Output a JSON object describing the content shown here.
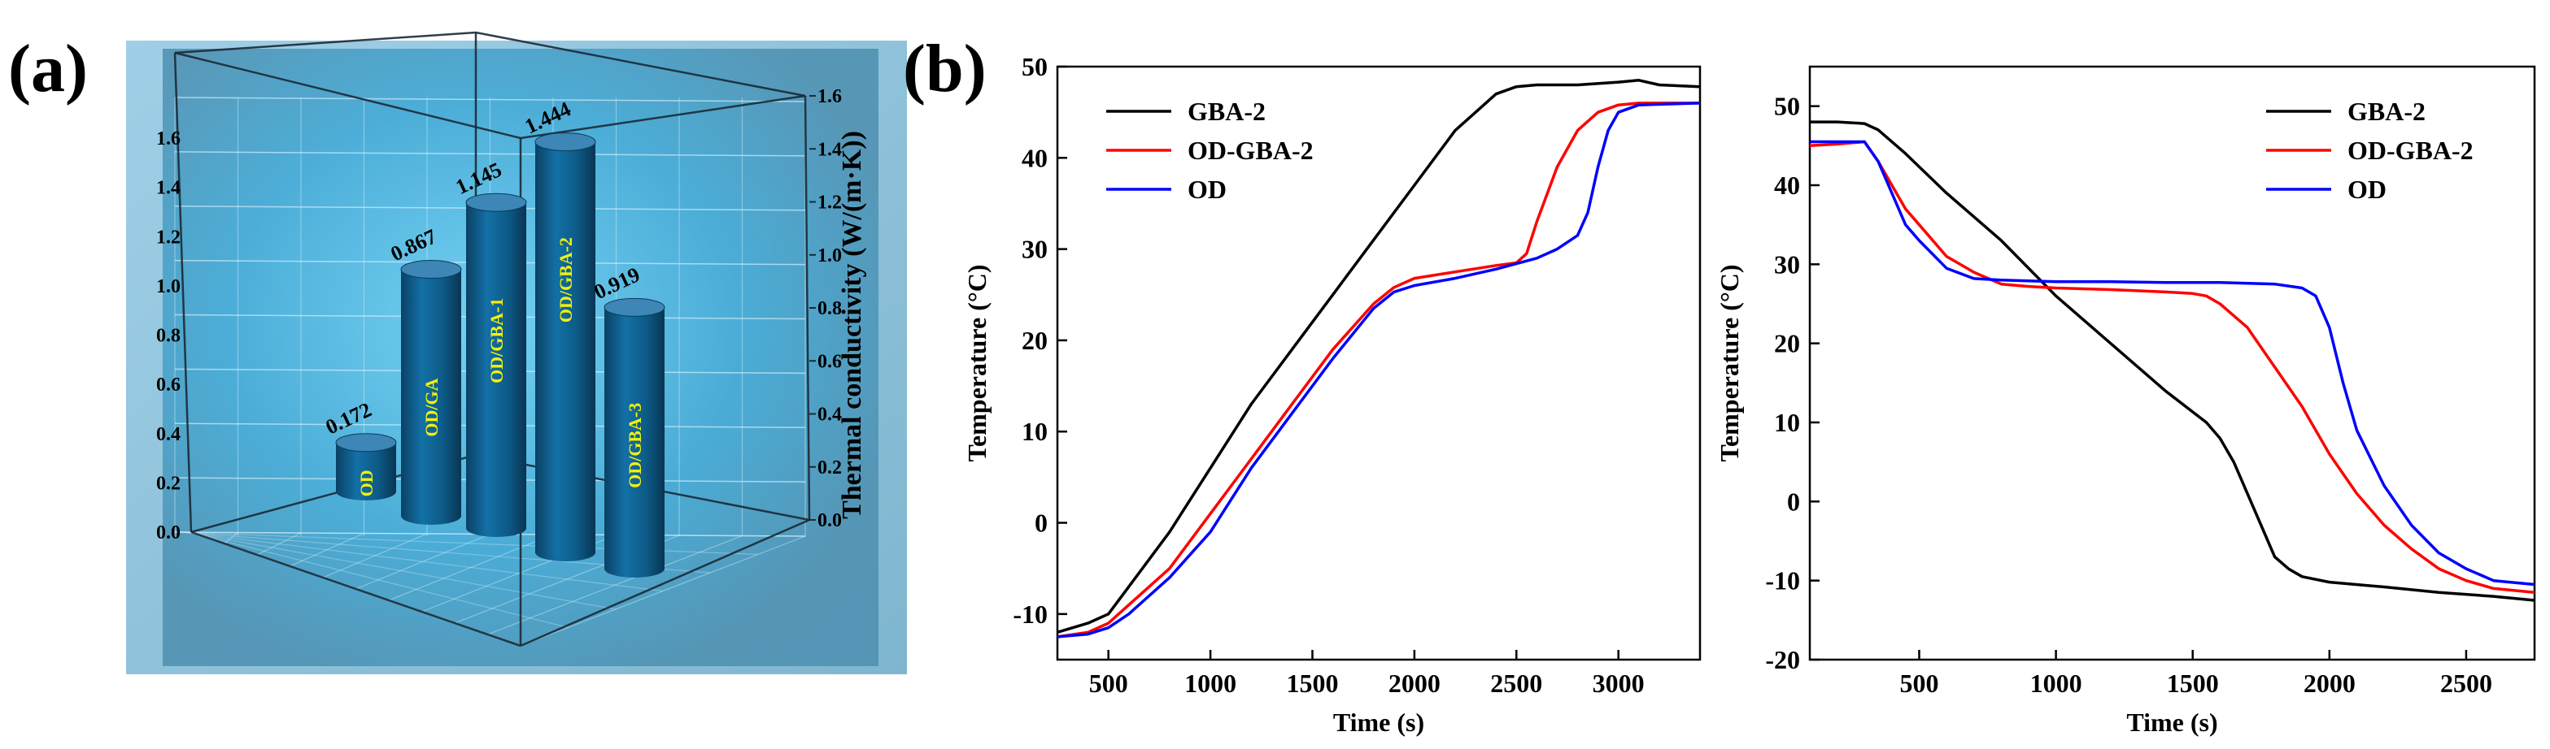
{
  "panels": {
    "a": "(a)",
    "b": "(b)"
  },
  "colors": {
    "bar": "#0d5a86",
    "bar_top": "#3d86b6",
    "box_bg": "#58b7e2",
    "gba2": "#000000",
    "odgba2": "#ff0000",
    "od": "#0000ff"
  },
  "chart_data": [
    {
      "type": "bar",
      "title": "",
      "categories": [
        "OD",
        "OD/GA",
        "OD/GBA-1",
        "OD/GBA-2",
        "OD/GBA-3"
      ],
      "values": [
        0.172,
        0.867,
        1.145,
        1.444,
        0.919
      ],
      "value_labels": [
        "0.172",
        "0.867",
        "1.145",
        "1.444",
        "0.919"
      ],
      "ylabel": "Thermal conductivity (W/(m·K))",
      "ylim": [
        0,
        1.6
      ],
      "yticks": [
        "0.0",
        "0.2",
        "0.4",
        "0.6",
        "0.8",
        "1.0",
        "1.2",
        "1.4",
        "1.6"
      ],
      "grid": true
    },
    {
      "type": "line",
      "xlabel": "Time (s)",
      "ylabel": "Temperature (°C)",
      "xlim": [
        250,
        3400
      ],
      "ylim": [
        -15,
        50
      ],
      "xticks": [
        "500",
        "1000",
        "1500",
        "2000",
        "2500",
        "3000"
      ],
      "yticks": [
        "-10",
        "0",
        "10",
        "20",
        "30",
        "40",
        "50"
      ],
      "legend": "top-left",
      "series": [
        {
          "name": "GBA-2",
          "color_key": "gba2",
          "x": [
            250,
            400,
            500,
            600,
            800,
            1000,
            1200,
            1400,
            1600,
            1800,
            2000,
            2200,
            2300,
            2400,
            2500,
            2600,
            2800,
            3000,
            3100,
            3200,
            3400
          ],
          "y": [
            -12,
            -11,
            -10,
            -7,
            -1,
            6,
            13,
            19,
            25,
            31,
            37,
            43,
            45,
            47,
            47.8,
            48,
            48,
            48.3,
            48.5,
            48,
            47.8
          ]
        },
        {
          "name": "OD-GBA-2",
          "color_key": "odgba2",
          "x": [
            250,
            400,
            500,
            600,
            800,
            1000,
            1200,
            1400,
            1600,
            1800,
            1900,
            2000,
            2200,
            2400,
            2500,
            2550,
            2600,
            2700,
            2800,
            2900,
            3000,
            3100,
            3400
          ],
          "y": [
            -12.5,
            -12,
            -11,
            -9,
            -5,
            1,
            7,
            13,
            19,
            24,
            25.8,
            26.8,
            27.5,
            28.2,
            28.5,
            29.5,
            33,
            39,
            43,
            45,
            45.8,
            46,
            46
          ]
        },
        {
          "name": "OD",
          "color_key": "od",
          "x": [
            250,
            400,
            500,
            600,
            800,
            1000,
            1200,
            1400,
            1600,
            1800,
            1900,
            2000,
            2200,
            2400,
            2600,
            2700,
            2800,
            2850,
            2900,
            2950,
            3000,
            3100,
            3400
          ],
          "y": [
            -12.5,
            -12.2,
            -11.5,
            -10,
            -6,
            -1,
            6,
            12,
            18,
            23.5,
            25.3,
            26,
            26.8,
            27.8,
            29,
            30,
            31.5,
            34,
            39,
            43,
            45,
            45.8,
            46
          ]
        }
      ]
    },
    {
      "type": "line",
      "xlabel": "Time (s)",
      "ylabel": "Temperature (°C)",
      "xlim": [
        100,
        2750
      ],
      "ylim": [
        -20,
        55
      ],
      "xticks": [
        "500",
        "1000",
        "1500",
        "2000",
        "2500"
      ],
      "yticks": [
        "-20",
        "-10",
        "0",
        "10",
        "20",
        "30",
        "40",
        "50"
      ],
      "legend": "top-right",
      "series": [
        {
          "name": "GBA-2",
          "color_key": "gba2",
          "x": [
            100,
            200,
            300,
            350,
            450,
            600,
            800,
            1000,
            1200,
            1400,
            1550,
            1600,
            1650,
            1700,
            1750,
            1800,
            1850,
            1900,
            2000,
            2200,
            2400,
            2600,
            2750
          ],
          "y": [
            48,
            48,
            47.8,
            47,
            44,
            39,
            33,
            26,
            20,
            14,
            10,
            8,
            5,
            1,
            -3,
            -7,
            -8.5,
            -9.5,
            -10.2,
            -10.8,
            -11.5,
            -12,
            -12.5
          ]
        },
        {
          "name": "OD-GBA-2",
          "color_key": "odgba2",
          "x": [
            100,
            200,
            300,
            350,
            400,
            450,
            500,
            600,
            700,
            800,
            900,
            1000,
            1200,
            1400,
            1500,
            1550,
            1600,
            1700,
            1800,
            1900,
            2000,
            2100,
            2200,
            2300,
            2400,
            2500,
            2600,
            2750
          ],
          "y": [
            45,
            45.2,
            45.5,
            43,
            40,
            37,
            35,
            31,
            29,
            27.5,
            27.2,
            27,
            26.8,
            26.5,
            26.3,
            26,
            25,
            22,
            17,
            12,
            6,
            1,
            -3,
            -6,
            -8.5,
            -10,
            -11,
            -11.5
          ]
        },
        {
          "name": "OD",
          "color_key": "od",
          "x": [
            100,
            200,
            300,
            350,
            400,
            450,
            500,
            600,
            700,
            800,
            1000,
            1200,
            1400,
            1600,
            1800,
            1900,
            1950,
            2000,
            2050,
            2100,
            2200,
            2300,
            2400,
            2500,
            2600,
            2750
          ],
          "y": [
            45.5,
            45.5,
            45.5,
            43,
            39,
            35,
            33,
            29.5,
            28.2,
            28,
            27.8,
            27.8,
            27.7,
            27.7,
            27.5,
            27,
            26,
            22,
            15,
            9,
            2,
            -3,
            -6.5,
            -8.5,
            -10,
            -10.5
          ]
        }
      ]
    }
  ]
}
